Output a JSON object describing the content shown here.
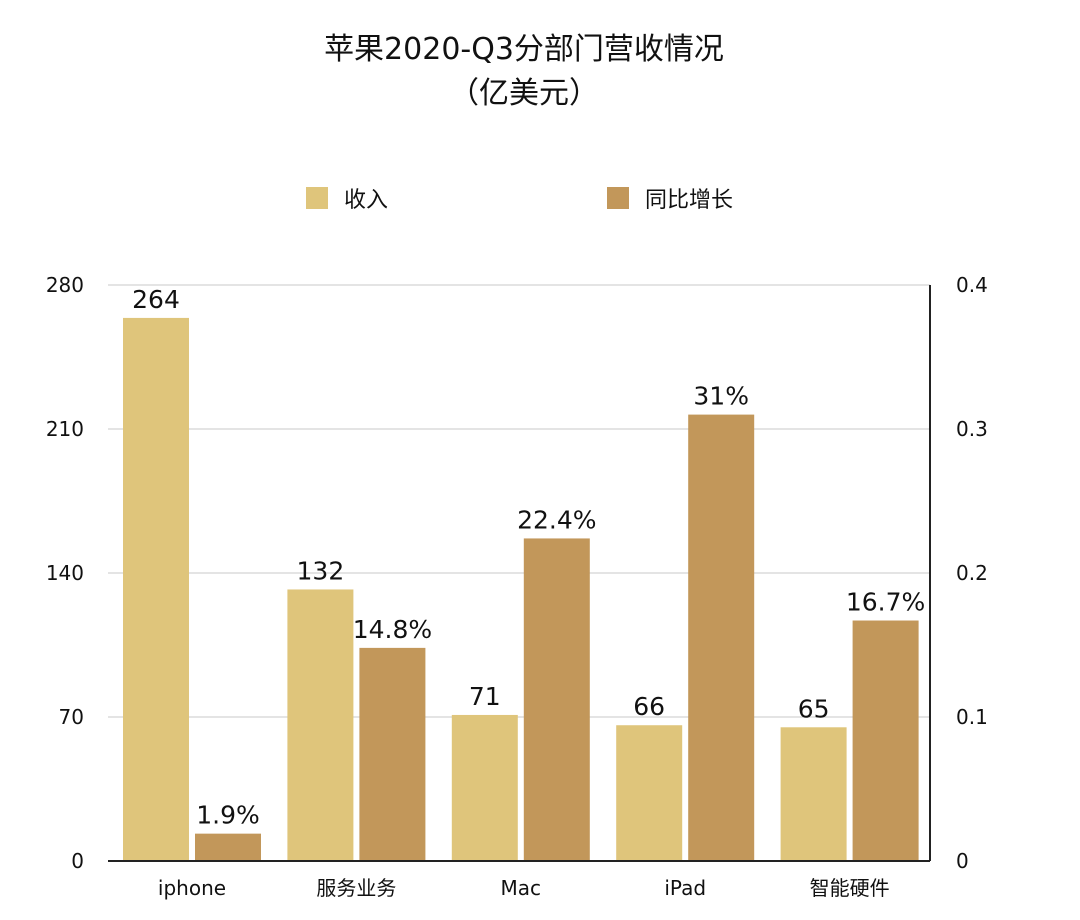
{
  "chart_data": {
    "type": "bar",
    "title_line1": "苹果2020-Q3分部门营收情况",
    "title_line2": "（亿美元）",
    "categories": [
      "iphone",
      "服务业务",
      "Mac",
      "iPad",
      "智能硬件"
    ],
    "series": [
      {
        "name": "收入",
        "axis": "left",
        "values": [
          264,
          132,
          71,
          66,
          65
        ],
        "labels": [
          "264",
          "132",
          "71",
          "66",
          "65"
        ],
        "color": "#dfc57b"
      },
      {
        "name": "同比增长",
        "axis": "right",
        "values": [
          0.019,
          0.148,
          0.224,
          0.31,
          0.167
        ],
        "labels": [
          "1.9%",
          "14.8%",
          "22.4%",
          "31%",
          "16.7%"
        ],
        "color": "#c2975a"
      }
    ],
    "left_axis": {
      "range": [
        0,
        280
      ],
      "ticks": [
        "0",
        "70",
        "140",
        "210",
        "280"
      ]
    },
    "right_axis": {
      "range": [
        0,
        0.4
      ],
      "ticks": [
        "0",
        "0.1",
        "0.2",
        "0.3",
        "0.4"
      ]
    },
    "grid": true,
    "legend_position": "top"
  }
}
